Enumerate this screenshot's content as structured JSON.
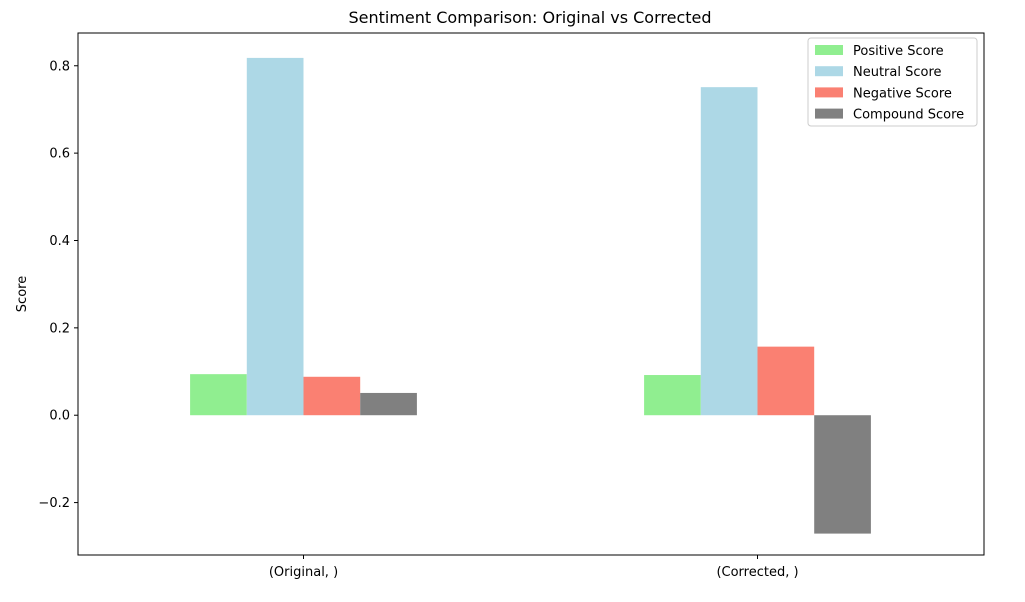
{
  "chart_data": {
    "type": "bar",
    "title": "Sentiment Comparison: Original vs Corrected",
    "xlabel": "",
    "ylabel": "Score",
    "categories": [
      "(Original, )",
      "(Corrected, )"
    ],
    "ylim": [
      -0.32,
      0.875
    ],
    "yticks": [
      -0.2,
      0.0,
      0.2,
      0.4,
      0.6,
      0.8
    ],
    "ytick_labels": [
      "−0.2",
      "0.0",
      "0.2",
      "0.4",
      "0.6",
      "0.8"
    ],
    "grid": false,
    "legend_position": "upper right",
    "series": [
      {
        "name": "Positive Score",
        "values": [
          0.094,
          0.092
        ],
        "color": "#90ee90"
      },
      {
        "name": "Neutral Score",
        "values": [
          0.818,
          0.751
        ],
        "color": "#add8e6"
      },
      {
        "name": "Negative Score",
        "values": [
          0.088,
          0.157
        ],
        "color": "#fa8072"
      },
      {
        "name": "Compound Score",
        "values": [
          0.051,
          -0.271
        ],
        "color": "#808080"
      }
    ]
  }
}
